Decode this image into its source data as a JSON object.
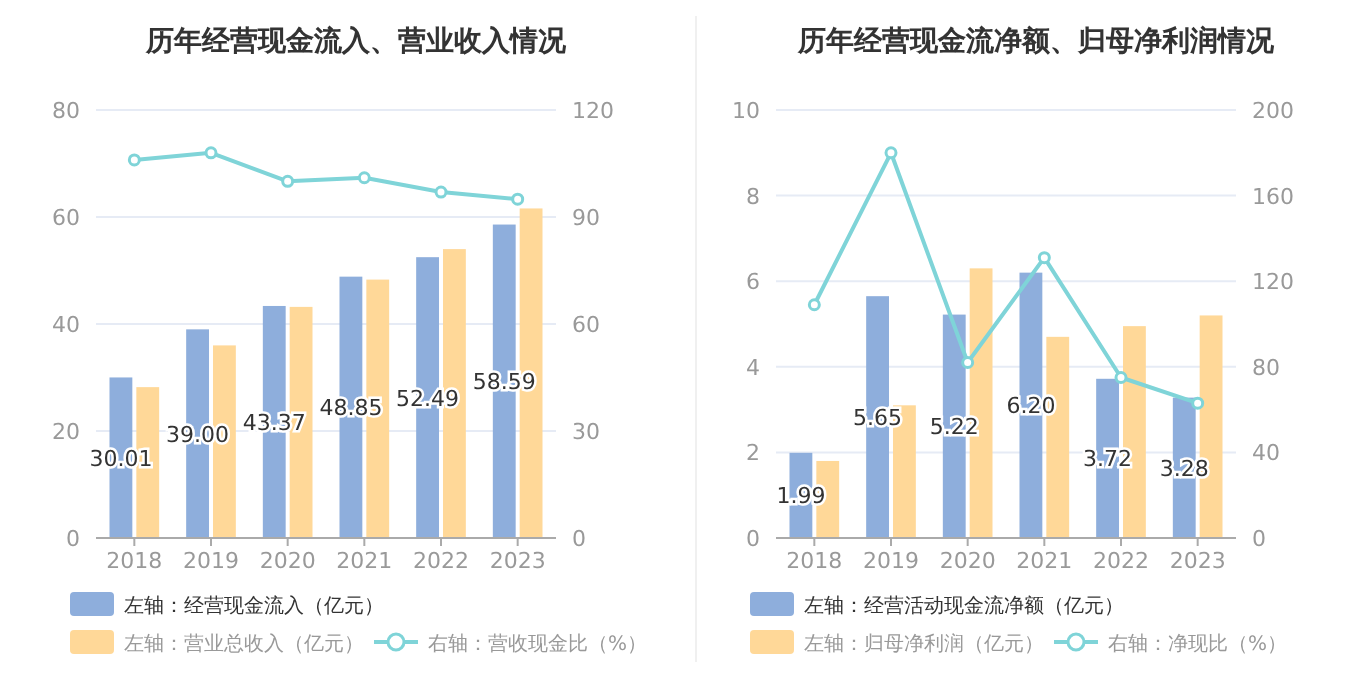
{
  "chart_data": [
    {
      "type": "bar",
      "title": "历年经营现金流入、营业收入情况",
      "categories": [
        "2018",
        "2019",
        "2020",
        "2021",
        "2022",
        "2023"
      ],
      "ylim": [
        0,
        80
      ],
      "yticks": [
        0,
        20,
        40,
        60,
        80
      ],
      "y2lim": [
        0,
        120
      ],
      "y2ticks": [
        0,
        30,
        60,
        90,
        120
      ],
      "grid": "y",
      "legend": "bottom",
      "series": [
        {
          "name": "左轴：经营现金流入（亿元）",
          "color": "#8eaedc",
          "values": [
            30.01,
            39.0,
            43.37,
            48.85,
            52.49,
            58.59
          ],
          "value_labels": [
            "30.01",
            "39.00",
            "43.37",
            "48.85",
            "52.49",
            "58.59"
          ]
        },
        {
          "name": "左轴：营业总收入（亿元）",
          "color": "#ffd898",
          "values": [
            28.2,
            36,
            43.2,
            48.3,
            54,
            61.6
          ]
        },
        {
          "name": "右轴：营收现金比（%）",
          "type": "line",
          "axis": "y2",
          "marker": "circle",
          "color": "#7fd4d8",
          "values": [
            106,
            108,
            100,
            101,
            97,
            95
          ]
        }
      ]
    },
    {
      "type": "bar",
      "title": "历年经营现金流净额、归母净利润情况",
      "categories": [
        "2018",
        "2019",
        "2020",
        "2021",
        "2022",
        "2023"
      ],
      "ylim": [
        0,
        10
      ],
      "yticks": [
        0,
        2,
        4,
        6,
        8,
        10
      ],
      "y2lim": [
        0,
        200
      ],
      "y2ticks": [
        0,
        40,
        80,
        120,
        160,
        200
      ],
      "grid": "y",
      "legend": "bottom",
      "series": [
        {
          "name": "左轴：经营活动现金流净额（亿元）",
          "color": "#8eaedc",
          "values": [
            1.99,
            5.65,
            5.22,
            6.2,
            3.72,
            3.28
          ],
          "value_labels": [
            "1.99",
            "5.65",
            "5.22",
            "6.20",
            "3.72",
            "3.28"
          ]
        },
        {
          "name": "左轴：归母净利润（亿元）",
          "color": "#ffd898",
          "values": [
            1.8,
            3.1,
            6.3,
            4.7,
            4.95,
            5.2
          ]
        },
        {
          "name": "右轴：净现比（%）",
          "type": "line",
          "axis": "y2",
          "marker": "circle",
          "color": "#7fd4d8",
          "values": [
            109,
            180,
            82,
            131,
            75,
            63
          ]
        }
      ]
    }
  ]
}
